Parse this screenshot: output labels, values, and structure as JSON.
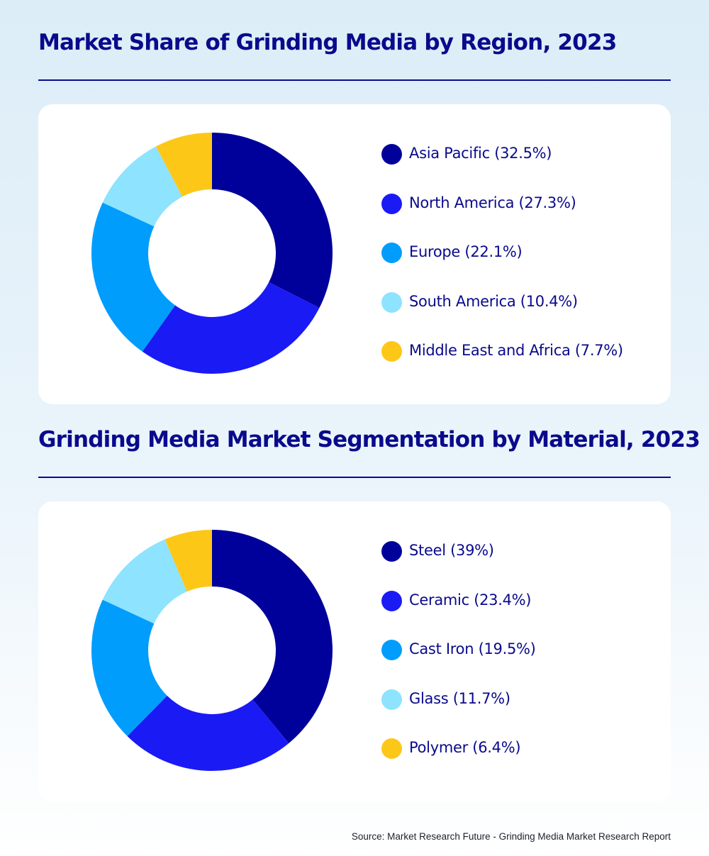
{
  "colors": [
    "#00009a",
    "#1a1af5",
    "#009dfc",
    "#8ee3fe",
    "#fdc718"
  ],
  "chart_data": [
    {
      "type": "pie",
      "title": "Market Share of Grinding Media by Region, 2023",
      "categories": [
        "Asia Pacific",
        "North America",
        "Europe",
        "South America",
        "Middle East and Africa"
      ],
      "values": [
        32.5,
        27.3,
        22.1,
        10.4,
        7.7
      ],
      "legend_labels": [
        "Asia Pacific (32.5%)",
        "North America (27.3%)",
        "Europe (22.1%)",
        "South America (10.4%)",
        "Middle East and Africa (7.7%)"
      ],
      "legend_position": "right"
    },
    {
      "type": "pie",
      "title": "Grinding Media Market Segmentation by Material, 2023",
      "categories": [
        "Steel",
        "Ceramic",
        "Cast Iron",
        "Glass",
        "Polymer"
      ],
      "values": [
        39,
        23.4,
        19.5,
        11.7,
        6.4
      ],
      "legend_labels": [
        "Steel (39%)",
        "Ceramic (23.4%)",
        "Cast Iron (19.5%)",
        "Glass (11.7%)",
        "Polymer (6.4%)"
      ],
      "legend_position": "right"
    }
  ],
  "source": "Source: Market Research Future - Grinding Media Market Research Report"
}
